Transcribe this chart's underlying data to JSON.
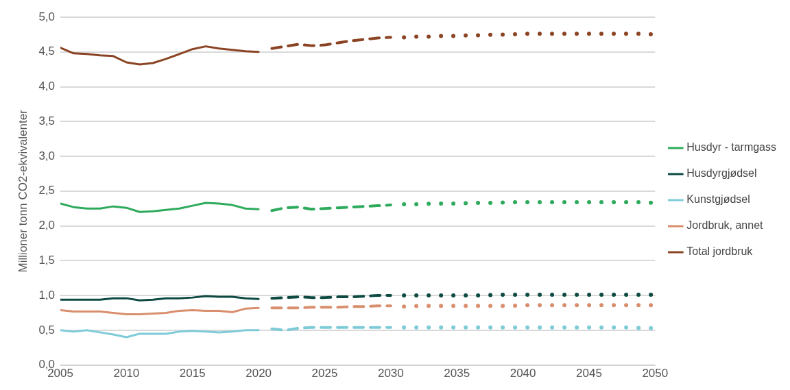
{
  "chart_data": {
    "type": "line",
    "ylabel": "Millioner tonn CO2-ekvivalenter",
    "xlim": [
      2005,
      2050
    ],
    "xticks": [
      2005,
      2010,
      2015,
      2020,
      2025,
      2030,
      2035,
      2040,
      2045,
      2050
    ],
    "ylim": [
      0,
      5
    ],
    "yticks": [
      {
        "value": 0,
        "label": "0,0"
      },
      {
        "value": 0.5,
        "label": "0,5"
      },
      {
        "value": 1,
        "label": "1,0"
      },
      {
        "value": 1.5,
        "label": "1,5"
      },
      {
        "value": 2,
        "label": "2,0"
      },
      {
        "value": 2.5,
        "label": "2,5"
      },
      {
        "value": 3,
        "label": "3,0"
      },
      {
        "value": 3.5,
        "label": "3,5"
      },
      {
        "value": 4,
        "label": "4,0"
      },
      {
        "value": 4.5,
        "label": "4,5"
      },
      {
        "value": 5,
        "label": "5,0"
      }
    ],
    "grid": "y",
    "legend": "right",
    "series": [
      {
        "name": "Husdyr - tarmgass",
        "color": "#2eaa5c",
        "line_style": "solid",
        "x": [
          2005,
          2006,
          2007,
          2008,
          2009,
          2010,
          2011,
          2012,
          2013,
          2014,
          2015,
          2016,
          2017,
          2018,
          2019,
          2020
        ],
        "values": [
          2.32,
          2.27,
          2.25,
          2.25,
          2.28,
          2.26,
          2.2,
          2.21,
          2.23,
          2.25,
          2.29,
          2.33,
          2.32,
          2.3,
          2.25,
          2.24
        ]
      },
      {
        "name": "Husdyrgjødsel",
        "color": "#0d4a42",
        "line_style": "solid",
        "x": [
          2005,
          2006,
          2007,
          2008,
          2009,
          2010,
          2011,
          2012,
          2013,
          2014,
          2015,
          2016,
          2017,
          2018,
          2019,
          2020
        ],
        "values": [
          0.94,
          0.94,
          0.94,
          0.94,
          0.96,
          0.96,
          0.93,
          0.94,
          0.96,
          0.96,
          0.97,
          0.99,
          0.98,
          0.98,
          0.96,
          0.95
        ]
      },
      {
        "name": "Kunstgjødsel",
        "color": "#7ecbd8",
        "line_style": "solid",
        "x": [
          2005,
          2006,
          2007,
          2008,
          2009,
          2010,
          2011,
          2012,
          2013,
          2014,
          2015,
          2016,
          2017,
          2018,
          2019,
          2020
        ],
        "values": [
          0.5,
          0.48,
          0.5,
          0.47,
          0.44,
          0.4,
          0.45,
          0.45,
          0.45,
          0.48,
          0.49,
          0.48,
          0.47,
          0.48,
          0.5,
          0.5
        ]
      },
      {
        "name": "Jordbruk, annet",
        "color": "#d98f6e",
        "line_style": "solid",
        "x": [
          2005,
          2006,
          2007,
          2008,
          2009,
          2010,
          2011,
          2012,
          2013,
          2014,
          2015,
          2016,
          2017,
          2018,
          2019,
          2020
        ],
        "values": [
          0.79,
          0.77,
          0.77,
          0.77,
          0.75,
          0.73,
          0.73,
          0.74,
          0.75,
          0.78,
          0.79,
          0.78,
          0.78,
          0.76,
          0.81,
          0.82
        ]
      },
      {
        "name": "Total jordbruk",
        "color": "#8b4423",
        "line_style": "solid",
        "x": [
          2005,
          2006,
          2007,
          2008,
          2009,
          2010,
          2011,
          2012,
          2013,
          2014,
          2015,
          2016,
          2017,
          2018,
          2019,
          2020
        ],
        "values": [
          4.56,
          4.48,
          4.47,
          4.45,
          4.44,
          4.35,
          4.32,
          4.34,
          4.4,
          4.47,
          4.54,
          4.58,
          4.55,
          4.53,
          4.51,
          4.5
        ]
      },
      {
        "color": "#2eaa5c",
        "line_style": "dashed",
        "x": [
          2021,
          2022,
          2023,
          2024,
          2025,
          2026,
          2027,
          2028,
          2029,
          2030
        ],
        "values": [
          2.22,
          2.26,
          2.27,
          2.24,
          2.25,
          2.26,
          2.27,
          2.28,
          2.29,
          2.3
        ]
      },
      {
        "color": "#0d4a42",
        "line_style": "dashed",
        "x": [
          2021,
          2022,
          2023,
          2024,
          2025,
          2026,
          2027,
          2028,
          2029,
          2030
        ],
        "values": [
          0.96,
          0.97,
          0.98,
          0.97,
          0.97,
          0.98,
          0.98,
          0.99,
          1.0,
          1.0
        ]
      },
      {
        "color": "#7ecbd8",
        "line_style": "dashed",
        "x": [
          2021,
          2022,
          2023,
          2024,
          2025,
          2026,
          2027,
          2028,
          2029,
          2030
        ],
        "values": [
          0.52,
          0.5,
          0.53,
          0.54,
          0.54,
          0.54,
          0.54,
          0.54,
          0.54,
          0.54
        ]
      },
      {
        "color": "#d98f6e",
        "line_style": "dashed",
        "x": [
          2021,
          2022,
          2023,
          2024,
          2025,
          2026,
          2027,
          2028,
          2029,
          2030
        ],
        "values": [
          0.82,
          0.82,
          0.82,
          0.83,
          0.83,
          0.83,
          0.84,
          0.84,
          0.85,
          0.85
        ]
      },
      {
        "color": "#8b4423",
        "line_style": "dashed",
        "x": [
          2021,
          2022,
          2023,
          2024,
          2025,
          2026,
          2027,
          2028,
          2029,
          2030
        ],
        "values": [
          4.55,
          4.58,
          4.61,
          4.59,
          4.6,
          4.63,
          4.66,
          4.68,
          4.7,
          4.71
        ]
      },
      {
        "color": "#2eaa5c",
        "line_style": "dotted",
        "x": [
          2031,
          2032,
          2033,
          2034,
          2035,
          2036,
          2037,
          2038,
          2039,
          2040,
          2041,
          2042,
          2043,
          2044,
          2045,
          2046,
          2047,
          2048,
          2049,
          2050
        ],
        "values": [
          2.31,
          2.31,
          2.32,
          2.32,
          2.32,
          2.33,
          2.33,
          2.33,
          2.34,
          2.34,
          2.34,
          2.34,
          2.34,
          2.34,
          2.34,
          2.34,
          2.34,
          2.34,
          2.34,
          2.33
        ]
      },
      {
        "color": "#0d4a42",
        "line_style": "dotted",
        "x": [
          2031,
          2032,
          2033,
          2034,
          2035,
          2036,
          2037,
          2038,
          2039,
          2040,
          2041,
          2042,
          2043,
          2044,
          2045,
          2046,
          2047,
          2048,
          2049,
          2050
        ],
        "values": [
          1.0,
          1.0,
          1.0,
          1.0,
          1.0,
          1.0,
          1.0,
          1.01,
          1.01,
          1.01,
          1.01,
          1.01,
          1.01,
          1.01,
          1.01,
          1.01,
          1.01,
          1.01,
          1.01,
          1.01
        ]
      },
      {
        "color": "#7ecbd8",
        "line_style": "dotted",
        "x": [
          2031,
          2032,
          2033,
          2034,
          2035,
          2036,
          2037,
          2038,
          2039,
          2040,
          2041,
          2042,
          2043,
          2044,
          2045,
          2046,
          2047,
          2048,
          2049,
          2050
        ],
        "values": [
          0.54,
          0.54,
          0.54,
          0.54,
          0.54,
          0.54,
          0.54,
          0.54,
          0.54,
          0.54,
          0.54,
          0.54,
          0.54,
          0.54,
          0.54,
          0.54,
          0.54,
          0.54,
          0.53,
          0.53
        ]
      },
      {
        "color": "#d98f6e",
        "line_style": "dotted",
        "x": [
          2031,
          2032,
          2033,
          2034,
          2035,
          2036,
          2037,
          2038,
          2039,
          2040,
          2041,
          2042,
          2043,
          2044,
          2045,
          2046,
          2047,
          2048,
          2049,
          2050
        ],
        "values": [
          0.84,
          0.85,
          0.85,
          0.85,
          0.85,
          0.85,
          0.85,
          0.85,
          0.85,
          0.86,
          0.86,
          0.86,
          0.86,
          0.86,
          0.86,
          0.86,
          0.86,
          0.86,
          0.86,
          0.86
        ]
      },
      {
        "color": "#8b4423",
        "line_style": "dotted",
        "x": [
          2031,
          2032,
          2033,
          2034,
          2035,
          2036,
          2037,
          2038,
          2039,
          2040,
          2041,
          2042,
          2043,
          2044,
          2045,
          2046,
          2047,
          2048,
          2049,
          2050
        ],
        "values": [
          4.71,
          4.72,
          4.72,
          4.73,
          4.73,
          4.74,
          4.74,
          4.75,
          4.75,
          4.76,
          4.76,
          4.76,
          4.76,
          4.76,
          4.76,
          4.76,
          4.76,
          4.76,
          4.76,
          4.75
        ]
      }
    ]
  }
}
